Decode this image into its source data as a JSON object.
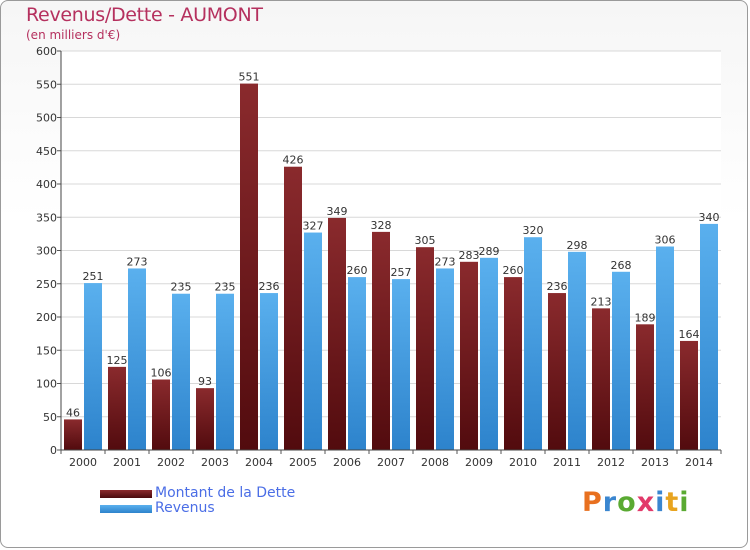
{
  "chart_data": {
    "type": "bar",
    "title": "Revenus/Dette - AUMONT",
    "subtitle": "(en milliers d'€)",
    "categories": [
      "2000",
      "2001",
      "2002",
      "2003",
      "2004",
      "2005",
      "2006",
      "2007",
      "2008",
      "2009",
      "2010",
      "2011",
      "2012",
      "2013",
      "2014"
    ],
    "series": [
      {
        "name": "Montant de la Dette",
        "color": "#7a1f22",
        "values": [
          46,
          125,
          106,
          93,
          551,
          426,
          349,
          328,
          305,
          283,
          260,
          236,
          213,
          189,
          164
        ]
      },
      {
        "name": "Revenus",
        "color": "#3f9be0",
        "values": [
          251,
          273,
          235,
          235,
          236,
          327,
          260,
          257,
          273,
          289,
          320,
          298,
          268,
          306,
          340
        ]
      }
    ],
    "ylim": [
      0,
      600
    ],
    "yticks": [
      0,
      50,
      100,
      150,
      200,
      250,
      300,
      350,
      400,
      450,
      500,
      550,
      600
    ],
    "grid": true,
    "legend_position": "bottom-left"
  },
  "logo": {
    "letters": [
      {
        "ch": "P",
        "color": "#e8701f"
      },
      {
        "ch": "r",
        "color": "#3a86d0"
      },
      {
        "ch": "o",
        "color": "#5aaa32"
      },
      {
        "ch": "x",
        "color": "#e23a6a"
      },
      {
        "ch": "i",
        "color": "#3a86d0"
      },
      {
        "ch": "t",
        "color": "#e8a41f"
      },
      {
        "ch": "i",
        "color": "#5aaa32"
      }
    ]
  }
}
